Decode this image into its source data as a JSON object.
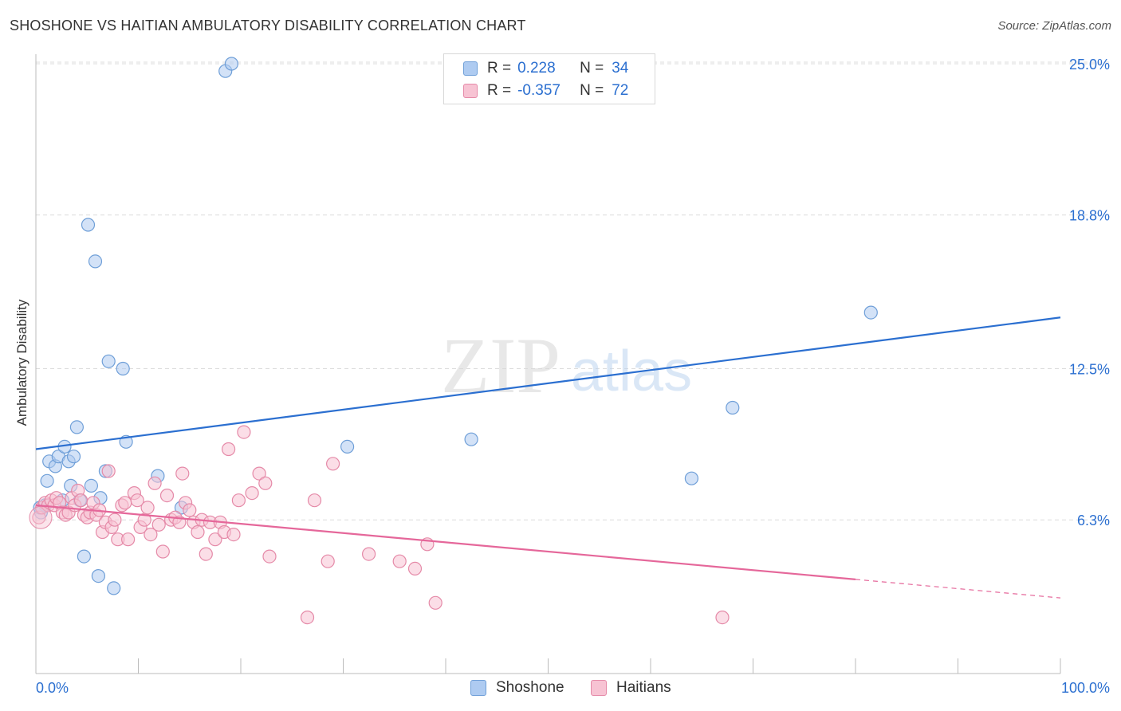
{
  "title": "SHOSHONE VS HAITIAN AMBULATORY DISABILITY CORRELATION CHART",
  "source": "Source: ZipAtlas.com",
  "watermark": {
    "zip": "ZIP",
    "atlas": "atlas"
  },
  "legend": {
    "r_label": "R =",
    "n_label": "N =",
    "rows": [
      {
        "name": "Shoshone",
        "r": "0.228",
        "n": "34",
        "color": "#aecbf1"
      },
      {
        "name": "Haitians",
        "r": "-0.357",
        "n": "72",
        "color": "#f7c3d3"
      }
    ]
  },
  "chart_data": {
    "type": "scatter",
    "title": "SHOSHONE VS HAITIAN AMBULATORY DISABILITY CORRELATION CHART",
    "xlabel": "",
    "ylabel": "Ambulatory Disability",
    "xlim": [
      0,
      100
    ],
    "ylim": [
      0,
      25.6
    ],
    "x_tick_labels": [
      "0.0%",
      "100.0%"
    ],
    "y_ticks": [
      6.3,
      12.5,
      18.8,
      25.0
    ],
    "y_tick_labels": [
      "6.3%",
      "12.5%",
      "18.8%",
      "25.0%"
    ],
    "grid": true,
    "legend_position": "top-center",
    "series": [
      {
        "name": "Shoshone",
        "color": "#6f9fd8",
        "fill": "#aecbf1",
        "line_color": "#2b6fd0",
        "trend": {
          "x": [
            0,
            100
          ],
          "y": [
            9.2,
            14.6
          ],
          "dashed_from": null
        },
        "points": [
          {
            "x": 0.5,
            "y": 6.6
          },
          {
            "x": 0.9,
            "y": 6.9
          },
          {
            "x": 1.1,
            "y": 7.9
          },
          {
            "x": 1.3,
            "y": 8.7
          },
          {
            "x": 1.9,
            "y": 8.5
          },
          {
            "x": 2.2,
            "y": 8.9
          },
          {
            "x": 2.6,
            "y": 7.1
          },
          {
            "x": 2.8,
            "y": 9.3
          },
          {
            "x": 3.2,
            "y": 8.7
          },
          {
            "x": 3.4,
            "y": 7.7
          },
          {
            "x": 3.7,
            "y": 8.9
          },
          {
            "x": 4.0,
            "y": 10.1
          },
          {
            "x": 4.3,
            "y": 7.1
          },
          {
            "x": 4.7,
            "y": 4.8
          },
          {
            "x": 5.1,
            "y": 18.4
          },
          {
            "x": 5.4,
            "y": 7.7
          },
          {
            "x": 5.8,
            "y": 16.9
          },
          {
            "x": 6.1,
            "y": 4.0
          },
          {
            "x": 6.3,
            "y": 7.2
          },
          {
            "x": 6.8,
            "y": 8.3
          },
          {
            "x": 7.1,
            "y": 12.8
          },
          {
            "x": 7.6,
            "y": 3.5
          },
          {
            "x": 8.5,
            "y": 12.5
          },
          {
            "x": 8.8,
            "y": 9.5
          },
          {
            "x": 11.9,
            "y": 8.1
          },
          {
            "x": 14.2,
            "y": 6.8
          },
          {
            "x": 18.5,
            "y": 24.7
          },
          {
            "x": 19.1,
            "y": 25.0
          },
          {
            "x": 30.4,
            "y": 9.3
          },
          {
            "x": 42.5,
            "y": 9.6
          },
          {
            "x": 64.0,
            "y": 8.0
          },
          {
            "x": 68.0,
            "y": 10.9
          },
          {
            "x": 81.5,
            "y": 14.8
          },
          {
            "x": 0.4,
            "y": 6.8
          }
        ]
      },
      {
        "name": "Haitians",
        "color": "#e58aa8",
        "fill": "#f7c3d3",
        "line_color": "#e5679a",
        "trend": {
          "x": [
            0,
            100
          ],
          "y": [
            6.9,
            3.1
          ],
          "dashed_from": 80
        },
        "points": [
          {
            "x": 0.3,
            "y": 6.4
          },
          {
            "x": 0.6,
            "y": 6.8
          },
          {
            "x": 0.9,
            "y": 7.0
          },
          {
            "x": 1.2,
            "y": 6.9
          },
          {
            "x": 1.5,
            "y": 7.1
          },
          {
            "x": 1.8,
            "y": 6.9
          },
          {
            "x": 2.0,
            "y": 7.2
          },
          {
            "x": 2.3,
            "y": 7.0
          },
          {
            "x": 2.6,
            "y": 6.6
          },
          {
            "x": 2.9,
            "y": 6.5
          },
          {
            "x": 3.2,
            "y": 6.6
          },
          {
            "x": 3.5,
            "y": 7.2
          },
          {
            "x": 3.8,
            "y": 6.9
          },
          {
            "x": 4.1,
            "y": 7.5
          },
          {
            "x": 4.4,
            "y": 7.1
          },
          {
            "x": 4.7,
            "y": 6.5
          },
          {
            "x": 5.0,
            "y": 6.4
          },
          {
            "x": 5.3,
            "y": 6.6
          },
          {
            "x": 5.6,
            "y": 7.0
          },
          {
            "x": 5.9,
            "y": 6.5
          },
          {
            "x": 6.2,
            "y": 6.7
          },
          {
            "x": 6.5,
            "y": 5.8
          },
          {
            "x": 6.8,
            "y": 6.2
          },
          {
            "x": 7.1,
            "y": 8.3
          },
          {
            "x": 7.4,
            "y": 6.0
          },
          {
            "x": 7.7,
            "y": 6.3
          },
          {
            "x": 8.0,
            "y": 5.5
          },
          {
            "x": 8.4,
            "y": 6.9
          },
          {
            "x": 8.7,
            "y": 7.0
          },
          {
            "x": 9.0,
            "y": 5.5
          },
          {
            "x": 9.6,
            "y": 7.4
          },
          {
            "x": 9.9,
            "y": 7.1
          },
          {
            "x": 10.2,
            "y": 6.0
          },
          {
            "x": 10.6,
            "y": 6.3
          },
          {
            "x": 10.9,
            "y": 6.8
          },
          {
            "x": 11.2,
            "y": 5.7
          },
          {
            "x": 11.6,
            "y": 7.8
          },
          {
            "x": 12.0,
            "y": 6.1
          },
          {
            "x": 12.4,
            "y": 5.0
          },
          {
            "x": 12.8,
            "y": 7.3
          },
          {
            "x": 13.2,
            "y": 6.3
          },
          {
            "x": 13.6,
            "y": 6.4
          },
          {
            "x": 14.0,
            "y": 6.2
          },
          {
            "x": 14.3,
            "y": 8.2
          },
          {
            "x": 14.6,
            "y": 7.0
          },
          {
            "x": 15.0,
            "y": 6.7
          },
          {
            "x": 15.4,
            "y": 6.2
          },
          {
            "x": 15.8,
            "y": 5.8
          },
          {
            "x": 16.2,
            "y": 6.3
          },
          {
            "x": 16.6,
            "y": 4.9
          },
          {
            "x": 17.0,
            "y": 6.2
          },
          {
            "x": 17.5,
            "y": 5.5
          },
          {
            "x": 18.0,
            "y": 6.2
          },
          {
            "x": 18.4,
            "y": 5.8
          },
          {
            "x": 18.8,
            "y": 9.2
          },
          {
            "x": 19.3,
            "y": 5.7
          },
          {
            "x": 19.8,
            "y": 7.1
          },
          {
            "x": 20.3,
            "y": 9.9
          },
          {
            "x": 21.1,
            "y": 7.4
          },
          {
            "x": 21.8,
            "y": 8.2
          },
          {
            "x": 22.4,
            "y": 7.8
          },
          {
            "x": 22.8,
            "y": 4.8
          },
          {
            "x": 26.5,
            "y": 2.3
          },
          {
            "x": 27.2,
            "y": 7.1
          },
          {
            "x": 28.5,
            "y": 4.6
          },
          {
            "x": 29.0,
            "y": 8.6
          },
          {
            "x": 32.5,
            "y": 4.9
          },
          {
            "x": 35.5,
            "y": 4.6
          },
          {
            "x": 37.0,
            "y": 4.3
          },
          {
            "x": 38.2,
            "y": 5.3
          },
          {
            "x": 39.0,
            "y": 2.9
          },
          {
            "x": 67.0,
            "y": 2.3
          }
        ]
      }
    ]
  }
}
